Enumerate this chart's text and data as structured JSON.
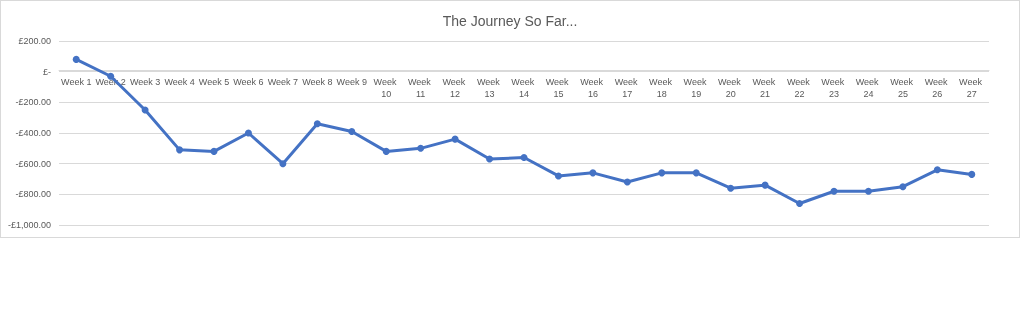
{
  "chart_data": {
    "type": "line",
    "title": "The Journey So Far...",
    "categories": [
      "Week 1",
      "Week 2",
      "Week 3",
      "Week 4",
      "Week 5",
      "Week 6",
      "Week 7",
      "Week 8",
      "Week 9",
      "Week 10",
      "Week 11",
      "Week 12",
      "Week 13",
      "Week 14",
      "Week 15",
      "Week 16",
      "Week 17",
      "Week 18",
      "Week 19",
      "Week 20",
      "Week 21",
      "Week 22",
      "Week 23",
      "Week 24",
      "Week 25",
      "Week 26",
      "Week 27"
    ],
    "series": [
      {
        "color": "#4472c4",
        "values": [
          80,
          -30,
          -250,
          -510,
          -520,
          -400,
          -600,
          -340,
          -390,
          -520,
          -500,
          -440,
          -570,
          -560,
          -680,
          -660,
          -720,
          -660,
          -660,
          -760,
          -740,
          -860,
          -780,
          -780,
          -750,
          -640,
          -670
        ]
      }
    ],
    "ylim": [
      -1000,
      200
    ],
    "yticks": [
      {
        "value": -1000,
        "label": "-£1,000.00"
      },
      {
        "value": -800,
        "label": "-£800.00"
      },
      {
        "value": -600,
        "label": "-£600.00"
      },
      {
        "value": -400,
        "label": "-£400.00"
      },
      {
        "value": -200,
        "label": "-£200.00"
      },
      {
        "value": 0,
        "label": "£-"
      },
      {
        "value": 200,
        "label": "£200.00"
      }
    ],
    "grid": "y",
    "marker": "circle",
    "line_style": "solid"
  }
}
